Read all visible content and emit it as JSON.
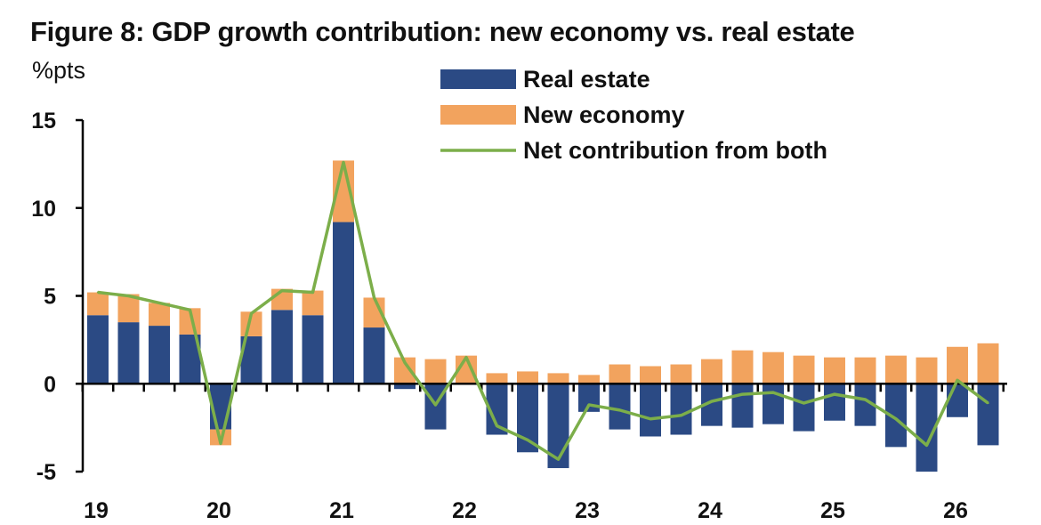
{
  "chart_data": {
    "type": "bar",
    "title": "Figure 8: GDP growth contribution: new economy vs. real estate",
    "ylabel": "%pts",
    "ylim": [
      -5,
      15
    ],
    "yticks": [
      -5,
      0,
      5,
      10,
      15
    ],
    "x_tick_labels": [
      "19",
      "20",
      "21",
      "22",
      "23",
      "24",
      "25",
      "26"
    ],
    "stacked": true,
    "grid": false,
    "legend_position": "top-center",
    "periods": [
      "19Q1",
      "19Q2",
      "19Q3",
      "19Q4",
      "20Q1",
      "20Q2",
      "20Q3",
      "20Q4",
      "21Q1",
      "21Q2",
      "21Q3",
      "21Q4",
      "22Q1",
      "22Q2",
      "22Q3",
      "22Q4",
      "23Q1",
      "23Q2",
      "23Q3",
      "23Q4",
      "24Q1",
      "24Q2",
      "24Q3",
      "24Q4",
      "25Q1",
      "25Q2",
      "25Q3",
      "25Q4",
      "26Q1",
      "26Q2"
    ],
    "series": [
      {
        "name": "Real estate",
        "kind": "bar",
        "color": "#2b4a84",
        "values": [
          3.9,
          3.5,
          3.3,
          2.8,
          -2.6,
          2.7,
          4.2,
          3.9,
          9.2,
          3.2,
          -0.3,
          -2.6,
          0.0,
          -2.9,
          -3.9,
          -4.8,
          -1.6,
          -2.6,
          -3.0,
          -2.9,
          -2.4,
          -2.5,
          -2.3,
          -2.7,
          -2.1,
          -2.4,
          -3.6,
          -5.0,
          -1.9,
          -3.5
        ]
      },
      {
        "name": "New economy",
        "kind": "bar",
        "color": "#f2a35e",
        "values": [
          1.3,
          1.6,
          1.3,
          1.5,
          -0.9,
          1.4,
          1.2,
          1.4,
          3.5,
          1.7,
          1.5,
          1.4,
          1.6,
          0.6,
          0.7,
          0.6,
          0.5,
          1.1,
          1.0,
          1.1,
          1.4,
          1.9,
          1.8,
          1.6,
          1.5,
          1.5,
          1.6,
          1.5,
          2.1,
          2.3
        ]
      },
      {
        "name": "Net contribution from both",
        "kind": "line",
        "color": "#7cae4a",
        "values": [
          5.2,
          5.0,
          4.6,
          4.2,
          -3.4,
          4.0,
          5.3,
          5.2,
          12.6,
          4.9,
          1.2,
          -1.2,
          1.5,
          -2.4,
          -3.2,
          -4.3,
          -1.2,
          -1.5,
          -2.0,
          -1.8,
          -1.0,
          -0.6,
          -0.5,
          -1.1,
          -0.6,
          -0.9,
          -2.0,
          -3.5,
          0.2,
          -1.1
        ]
      }
    ]
  }
}
